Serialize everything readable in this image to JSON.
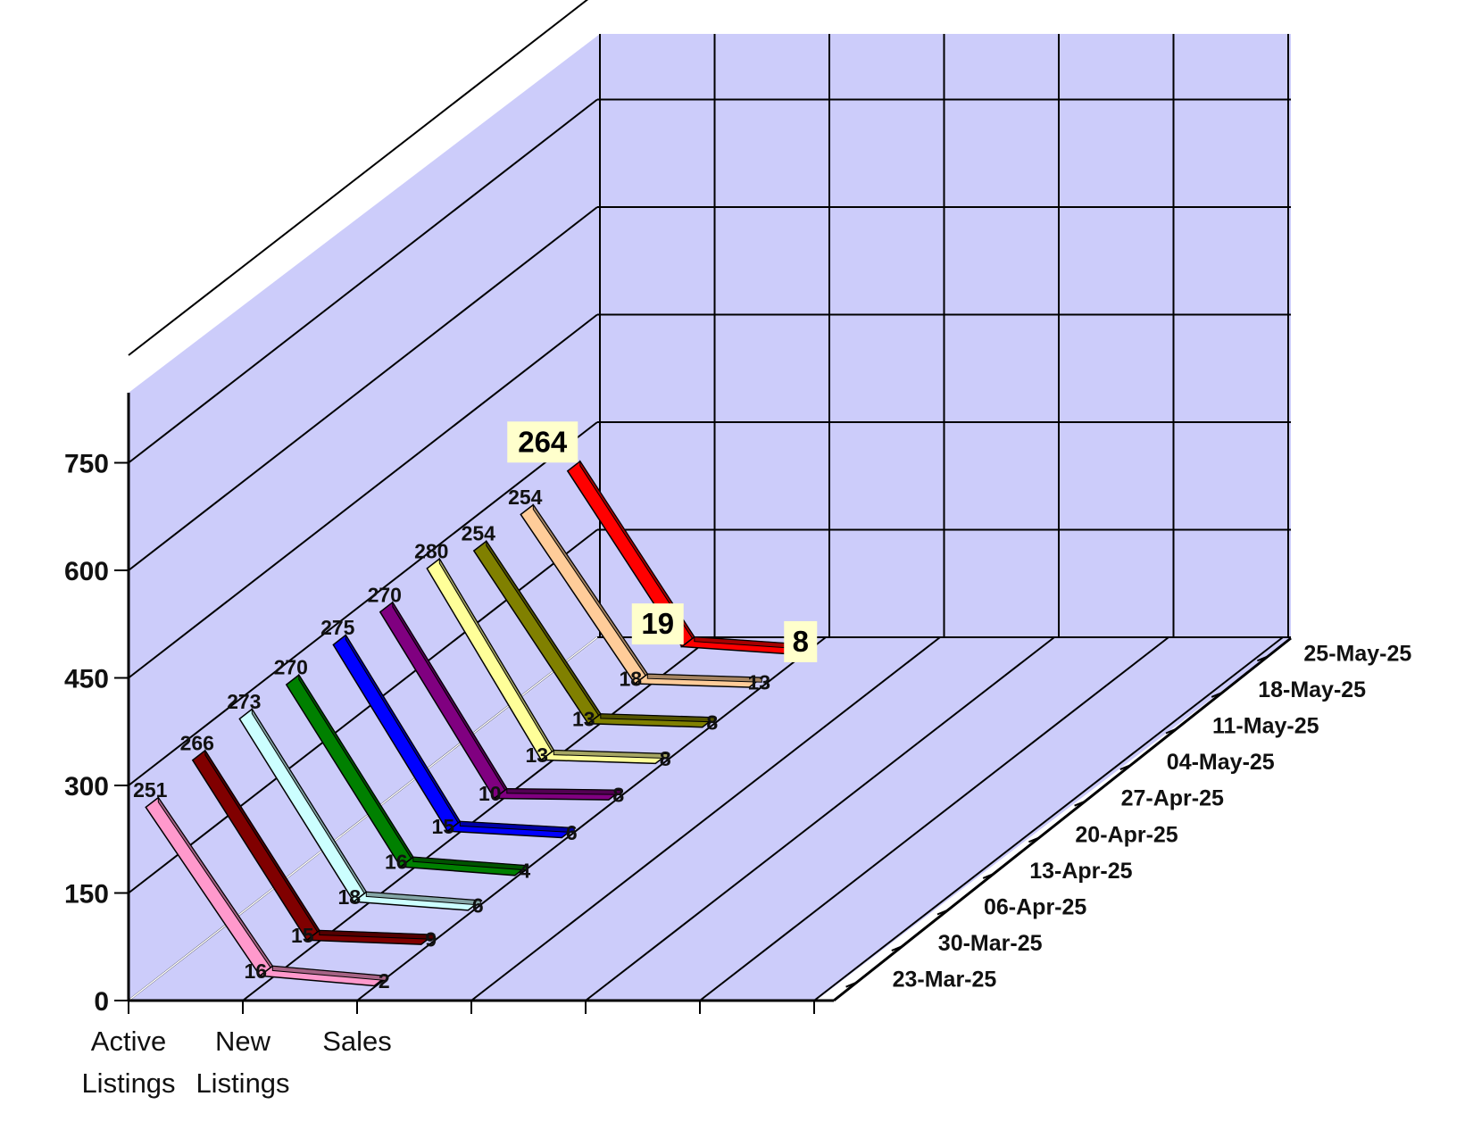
{
  "chart_data": {
    "type": "line",
    "view": "3d",
    "title": "",
    "xlabel": "",
    "ylabel": "",
    "categories": [
      "Active Listings",
      "New Listings",
      "Sales"
    ],
    "category_lines": [
      [
        "Active",
        "Listings"
      ],
      [
        "New",
        "Listings"
      ],
      [
        "Sales",
        ""
      ]
    ],
    "ylim": [
      0,
      750
    ],
    "yticks": [
      0,
      150,
      300,
      450,
      600,
      750
    ],
    "grid": true,
    "series": [
      {
        "name": "23-Mar-25",
        "values": [
          251,
          16,
          2
        ],
        "color": "#ff99cc"
      },
      {
        "name": "30-Mar-25",
        "values": [
          266,
          15,
          9
        ],
        "color": "#800000"
      },
      {
        "name": "06-Apr-25",
        "values": [
          273,
          18,
          6
        ],
        "color": "#ccffff"
      },
      {
        "name": "13-Apr-25",
        "values": [
          270,
          16,
          4
        ],
        "color": "#008000"
      },
      {
        "name": "20-Apr-25",
        "values": [
          275,
          15,
          6
        ],
        "color": "#0000ff"
      },
      {
        "name": "27-Apr-25",
        "values": [
          270,
          10,
          8
        ],
        "color": "#800080"
      },
      {
        "name": "04-May-25",
        "values": [
          280,
          13,
          8
        ],
        "color": "#ffff99"
      },
      {
        "name": "11-May-25",
        "values": [
          254,
          13,
          8
        ],
        "color": "#808000"
      },
      {
        "name": "18-May-25",
        "values": [
          254,
          18,
          13
        ],
        "color": "#ffcc99"
      },
      {
        "name": "25-May-25",
        "values": [
          264,
          19,
          8
        ],
        "color": "#ff0000"
      }
    ],
    "highlight_series": "25-May-25"
  },
  "colors": {
    "wall": "#ccccfa",
    "floor": "#ccccfa",
    "grid": "#000000",
    "label_box": "#ffffcc"
  }
}
